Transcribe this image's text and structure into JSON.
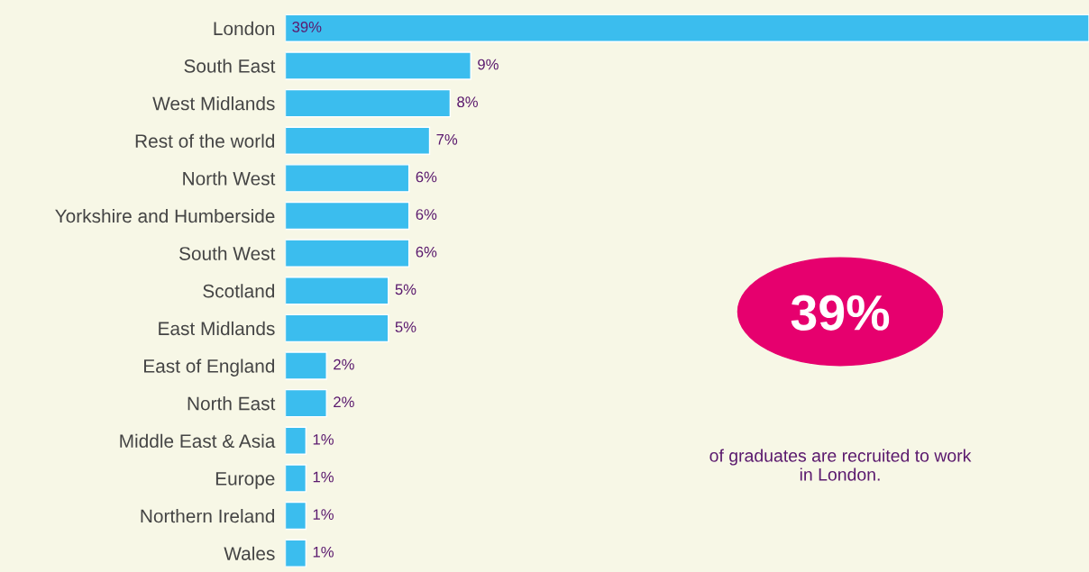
{
  "chart_data": {
    "type": "bar",
    "orientation": "horizontal",
    "categories": [
      "London",
      "South East",
      "West Midlands",
      "Rest of the world",
      "North West",
      "Yorkshire and Humberside",
      "South West",
      "Scotland",
      "East Midlands",
      "East of England",
      "North East",
      "Middle East & Asia",
      "Europe",
      "Northern Ireland",
      "Wales"
    ],
    "values": [
      39,
      9,
      8,
      7,
      6,
      6,
      6,
      5,
      5,
      2,
      2,
      1,
      1,
      1,
      1
    ],
    "value_labels": [
      "39%",
      "9%",
      "8%",
      "7%",
      "6%",
      "6%",
      "6%",
      "5%",
      "5%",
      "2%",
      "2%",
      "1%",
      "1%",
      "1%",
      "1%"
    ],
    "color": "#3bbdee",
    "annotations": [
      "39%",
      "of graduates are recruited to work in London."
    ],
    "grid": false,
    "legend": false
  }
}
